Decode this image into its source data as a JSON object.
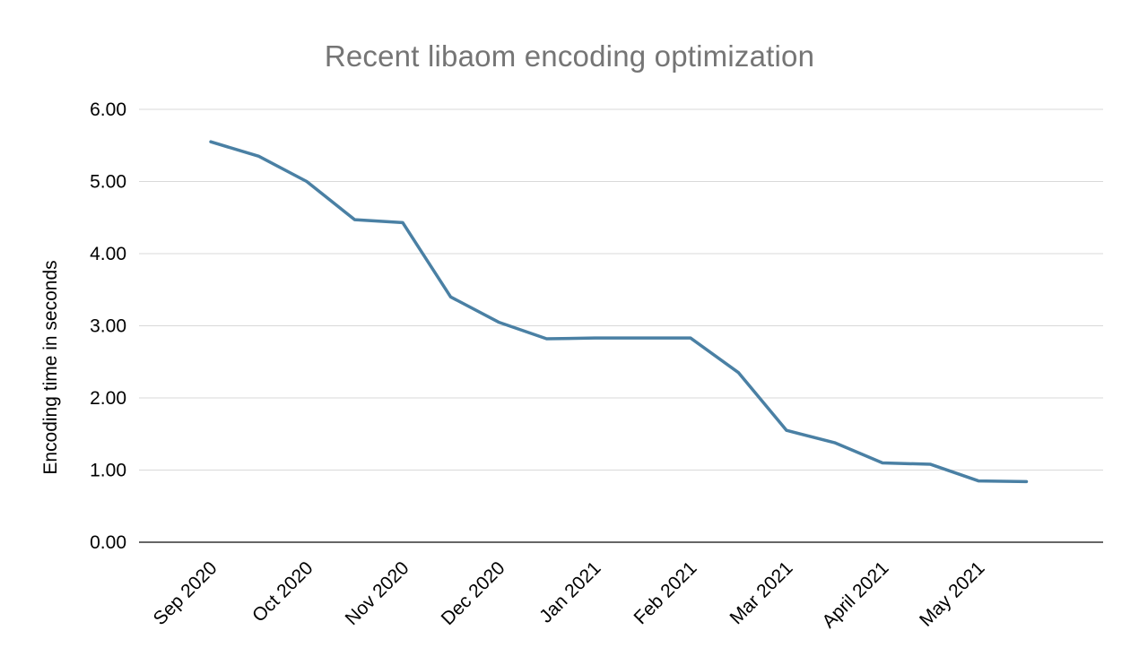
{
  "title": "Recent libaom encoding optimization",
  "chart_data": {
    "type": "line",
    "title": "Recent libaom encoding optimization",
    "xlabel": "",
    "ylabel": "Encoding time in seconds",
    "ylim": [
      0,
      6
    ],
    "yticks": [
      0,
      1,
      2,
      3,
      4,
      5,
      6
    ],
    "ytick_labels": [
      "0.00",
      "1.00",
      "2.00",
      "3.00",
      "4.00",
      "5.00",
      "6.00"
    ],
    "categories": [
      "Sep 2020",
      "Oct 2020",
      "Nov 2020",
      "Dec 2020",
      "Jan 2021",
      "Feb 2021",
      "Mar 2021",
      "April 2021",
      "May 2021"
    ],
    "x": [
      0,
      0.5,
      1,
      1.5,
      2,
      2.5,
      3,
      3.5,
      4,
      4.5,
      5,
      5.5,
      6,
      6.5,
      7,
      7.5,
      8,
      8.5
    ],
    "series": [
      {
        "name": "Encoding time",
        "color": "#4a80a4",
        "values": [
          5.55,
          5.35,
          5.0,
          4.47,
          4.43,
          3.4,
          3.05,
          2.82,
          2.83,
          2.83,
          2.83,
          2.35,
          1.55,
          1.38,
          1.1,
          1.08,
          0.85,
          0.84
        ]
      }
    ],
    "grid": true,
    "legend_position": "none",
    "grid_color": "#d9d9d9",
    "axis_color": "#333333",
    "title_color": "#757575",
    "background": "#ffffff"
  }
}
